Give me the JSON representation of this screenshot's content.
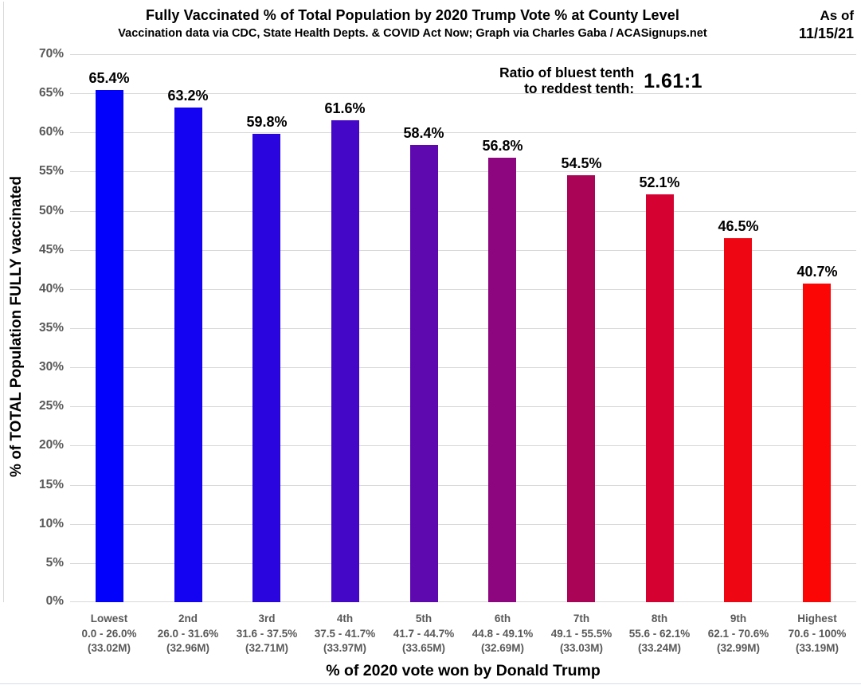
{
  "header": {
    "title": "Fully Vaccinated % of Total Population by 2020 Trump Vote % at County Level",
    "subtitle": "Vaccination data via CDC, State Health Depts. & COVID Act Now; Graph via Charles Gaba / ACASignups.net",
    "as_of_line1": "As of",
    "as_of_line2": "11/15/21"
  },
  "annotation": {
    "line1": "Ratio of bluest tenth",
    "line2": "to reddest tenth:",
    "ratio": "1.61:1"
  },
  "chart_data": {
    "type": "bar",
    "title": "Fully Vaccinated % of Total Population by 2020 Trump Vote % at County Level",
    "subtitle": "Vaccination data via CDC, State Health Depts. & COVID Act Now; Graph via Charles Gaba / ACASignups.net",
    "xlabel": "% of 2020 vote won by Donald Trump",
    "ylabel": "% of TOTAL Population FULLY vaccinated",
    "ylim": [
      0,
      70
    ],
    "ytick_labels": [
      "0%",
      "5%",
      "10%",
      "15%",
      "20%",
      "25%",
      "30%",
      "35%",
      "40%",
      "45%",
      "50%",
      "55%",
      "60%",
      "65%",
      "70%"
    ],
    "grid": true,
    "legend": false,
    "categories": [
      "Lowest",
      "2nd",
      "3rd",
      "4th",
      "5th",
      "6th",
      "7th",
      "8th",
      "9th",
      "Highest"
    ],
    "values": [
      65.4,
      63.2,
      59.8,
      61.6,
      58.4,
      56.8,
      54.5,
      52.1,
      46.5,
      40.7
    ],
    "bars": [
      {
        "decile": "Lowest",
        "vote_range": "0.0 - 26.0%",
        "population": "(33.02M)",
        "value": 65.4,
        "label": "65.4%",
        "color": "#0202FC"
      },
      {
        "decile": "2nd",
        "vote_range": "26.0 - 31.6%",
        "population": "(32.96M)",
        "value": 63.2,
        "label": "63.2%",
        "color": "#1402F2"
      },
      {
        "decile": "3rd",
        "vote_range": "31.6 - 37.5%",
        "population": "(32.71M)",
        "value": 59.8,
        "label": "59.8%",
        "color": "#2B05DD"
      },
      {
        "decile": "4th",
        "vote_range": "37.5 - 41.7%",
        "population": "(33.97M)",
        "value": 61.6,
        "label": "61.6%",
        "color": "#4407C8"
      },
      {
        "decile": "5th",
        "vote_range": "41.7 - 44.7%",
        "population": "(33.65M)",
        "value": 58.4,
        "label": "58.4%",
        "color": "#5E09B0"
      },
      {
        "decile": "6th",
        "vote_range": "44.8 - 49.1%",
        "population": "(32.69M)",
        "value": 56.8,
        "label": "56.8%",
        "color": "#8D0680"
      },
      {
        "decile": "7th",
        "vote_range": "49.1 - 55.5%",
        "population": "(33.03M)",
        "value": 54.5,
        "label": "54.5%",
        "color": "#A90455"
      },
      {
        "decile": "8th",
        "vote_range": "55.6 - 62.1%",
        "population": "(33.24M)",
        "value": 52.1,
        "label": "52.1%",
        "color": "#D50231"
      },
      {
        "decile": "9th",
        "vote_range": "62.1 - 70.6%",
        "population": "(32.99M)",
        "value": 46.5,
        "label": "46.5%",
        "color": "#EE0713"
      },
      {
        "decile": "Highest",
        "vote_range": "70.6 - 100%",
        "population": "(33.19M)",
        "value": 40.7,
        "label": "40.7%",
        "color": "#FB0505"
      }
    ]
  },
  "colors": {
    "gridline": "#D9D9D9",
    "axis_text": "#595959",
    "value_text": "#000000",
    "bluest": "#0202FC",
    "reddest": "#FB0505"
  }
}
